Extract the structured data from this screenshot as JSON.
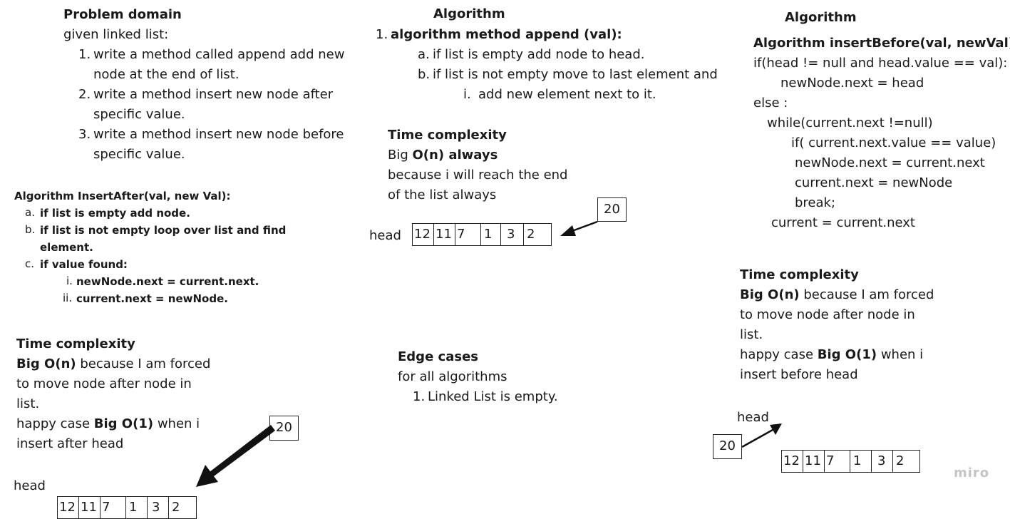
{
  "problem_domain": {
    "title": "Problem domain",
    "intro": "given linked list:",
    "items": [
      {
        "num": "1.",
        "lines": [
          "write a method called append add new",
          "node at the end of list."
        ]
      },
      {
        "num": "2.",
        "lines": [
          "write a method insert new node after",
          "specific value."
        ]
      },
      {
        "num": "3.",
        "lines": [
          "write a method insert new node before",
          "specific value."
        ]
      }
    ]
  },
  "insert_after_algo": {
    "title": "Algorithm InsertAfter(val, new Val):",
    "a": {
      "num": "a.",
      "text": "if list is empty add node."
    },
    "b": {
      "num": "b.",
      "lines": [
        "if list is not empty loop over list and find",
        "element."
      ]
    },
    "c": {
      "num": "c.",
      "text": "if value found:"
    },
    "i": {
      "num": "i.",
      "text": "newNode.next = current.next."
    },
    "ii": {
      "num": "ii.",
      "text": "current.next = newNode."
    }
  },
  "insert_after_time": {
    "title": "Time complexity",
    "bigo": "Big O(n)",
    "rest1": " because I am forced",
    "line2": "to move node after node in",
    "line3": "list.",
    "happy": "happy case ",
    "bigo1": "Big O(1)",
    "rest4": " when i",
    "line5": "insert after head"
  },
  "append_algo": {
    "title": "Algorithm",
    "num": "1.",
    "method": "algorithm method append (val):",
    "a": {
      "num": "a.",
      "text": "if list is empty add node to head."
    },
    "b": {
      "num": "b.",
      "text": "if list is not empty move to last element and"
    },
    "i": {
      "num": "i.",
      "text": "add new element next to it."
    }
  },
  "append_time": {
    "title": "Time complexity",
    "big": "Big ",
    "bigo": "O(n) always",
    "line2": " because i will reach the end",
    "line3": "of the list always"
  },
  "edge_cases": {
    "title": "Edge cases",
    "intro": " for all algorithms",
    "num": "1.",
    "item": "Linked List is empty."
  },
  "insert_before_algo": {
    "title": "Algorithm",
    "method": "Algorithm insertBefore(val, newVal):",
    "code": [
      " if(head != null and head.value == val):",
      "newNode.next = head",
      "else :",
      "while(current.next !=null)",
      "if( current.next.value == value)",
      "newNode.next = current.next",
      "current.next = newNode",
      "break;",
      "current = current.next"
    ]
  },
  "insert_before_time": {
    "title": "Time complexity",
    "bigo": "Big O(n)",
    "rest1": " because I am forced",
    "line2": "to move node after node in",
    "line3": "list.",
    "happy": "happy case ",
    "bigo1": "Big O(1)",
    "rest4": " when i",
    "line5": "insert before head"
  },
  "lists": {
    "head_label": "head",
    "values": [
      "12",
      "11",
      "7",
      "1",
      "3",
      "2"
    ],
    "new_node": "20"
  },
  "watermark": "miro"
}
